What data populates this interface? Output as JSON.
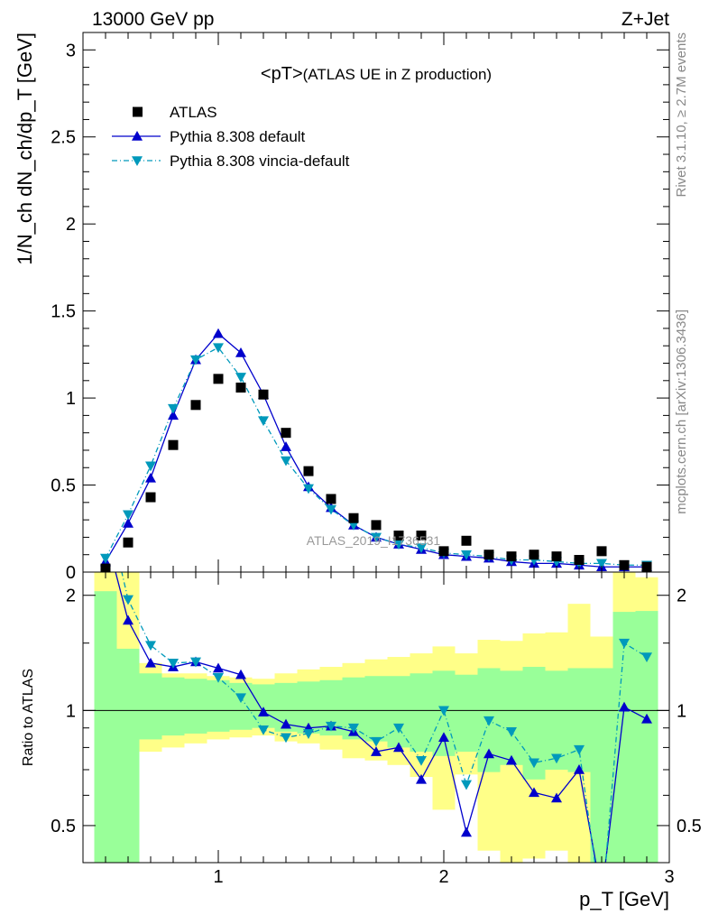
{
  "header": {
    "left": "13000 GeV pp",
    "right": "Z+Jet"
  },
  "side_labels": {
    "rivet": "Rivet 3.1.10, ≥ 2.7M events",
    "mcplots": "mcplots.cern.ch [arXiv:1306.3436]"
  },
  "watermark": "ATLAS_2019_I1736531",
  "main_title": {
    "main": "<pT>",
    "sub": "(ATLAS UE in Z production)"
  },
  "axes": {
    "y_main_label": "1/N_ch dN_ch/dp_T [GeV]",
    "y_ratio_label": "Ratio to ATLAS",
    "x_label": "p_T [GeV]",
    "x_ticks": [
      "1",
      "2",
      "3"
    ],
    "y_main_ticks": [
      "0",
      "0.5",
      "1",
      "1.5",
      "2",
      "2.5",
      "3"
    ],
    "y_ratio_ticks": [
      "0.5",
      "1",
      "2"
    ]
  },
  "legend": [
    {
      "label": "ATLAS",
      "marker": "square",
      "color": "#000000"
    },
    {
      "label": "Pythia 8.308 default",
      "marker": "triangle-up",
      "color": "#0000cc"
    },
    {
      "label": "Pythia 8.308 vincia-default",
      "marker": "triangle-down",
      "color": "#0099bb"
    }
  ],
  "chart_data": {
    "type": "line",
    "x": [
      0.5,
      0.6,
      0.7,
      0.8,
      0.9,
      1.0,
      1.1,
      1.2,
      1.3,
      1.4,
      1.5,
      1.6,
      1.7,
      1.8,
      1.9,
      2.0,
      2.1,
      2.2,
      2.3,
      2.4,
      2.5,
      2.6,
      2.7,
      2.8,
      2.9
    ],
    "xlim": [
      0.4,
      3.0
    ],
    "ylim": [
      0,
      3.1
    ],
    "ratio_ylim": [
      0.4,
      2.3
    ],
    "ratio_scale": "log",
    "series": [
      {
        "name": "ATLAS",
        "color": "#000000",
        "values": [
          0.02,
          0.17,
          0.43,
          0.73,
          0.96,
          1.11,
          1.06,
          1.02,
          0.8,
          0.58,
          0.42,
          0.31,
          0.27,
          0.21,
          0.21,
          0.12,
          0.18,
          0.1,
          0.09,
          0.1,
          0.09,
          0.07,
          0.12,
          0.04,
          0.03
        ]
      },
      {
        "name": "Pythia 8.308 default",
        "color": "#0000cc",
        "values": [
          0.06,
          0.28,
          0.54,
          0.9,
          1.22,
          1.37,
          1.26,
          1.02,
          0.72,
          0.49,
          0.37,
          0.27,
          0.2,
          0.16,
          0.13,
          0.1,
          0.09,
          0.08,
          0.06,
          0.05,
          0.05,
          0.04,
          0.03,
          0.03,
          0.03
        ],
        "ratio": [
          2.9,
          1.72,
          1.33,
          1.3,
          1.34,
          1.29,
          1.24,
          0.99,
          0.92,
          0.9,
          0.91,
          0.88,
          0.78,
          0.8,
          0.66,
          0.85,
          0.48,
          0.77,
          0.74,
          0.61,
          0.59,
          0.7,
          0.33,
          1.02,
          0.95
        ]
      },
      {
        "name": "Pythia 8.308 vincia-default",
        "color": "#0099bb",
        "values": [
          0.08,
          0.33,
          0.61,
          0.94,
          1.22,
          1.29,
          1.12,
          0.87,
          0.64,
          0.48,
          0.36,
          0.27,
          0.2,
          0.16,
          0.14,
          0.11,
          0.1,
          0.09,
          0.07,
          0.07,
          0.06,
          0.05,
          0.05,
          0.04,
          0.04
        ],
        "ratio": [
          3.5,
          1.95,
          1.48,
          1.33,
          1.34,
          1.22,
          1.08,
          0.89,
          0.85,
          0.87,
          0.91,
          0.9,
          0.83,
          0.9,
          0.74,
          1.0,
          0.64,
          0.94,
          0.88,
          0.73,
          0.75,
          0.79,
          0.3,
          1.5,
          1.38
        ]
      }
    ],
    "ratio_bands": {
      "inner_high": [
        2.05,
        1.45,
        1.25,
        1.22,
        1.21,
        1.2,
        1.18,
        1.17,
        1.18,
        1.19,
        1.2,
        1.22,
        1.23,
        1.23,
        1.25,
        1.27,
        1.24,
        1.29,
        1.27,
        1.3,
        1.27,
        1.29,
        1.29,
        1.81,
        1.82
      ],
      "inner_low": [
        0.1,
        0.4,
        0.84,
        0.86,
        0.87,
        0.88,
        0.89,
        0.9,
        0.88,
        0.87,
        0.86,
        0.84,
        0.83,
        0.8,
        0.78,
        0.76,
        0.78,
        0.69,
        0.72,
        0.66,
        0.7,
        0.69,
        0.1,
        0.1,
        0.1
      ],
      "outer_high": [
        2.7,
        2.6,
        1.33,
        1.25,
        1.25,
        1.23,
        1.22,
        1.21,
        1.25,
        1.28,
        1.3,
        1.33,
        1.36,
        1.38,
        1.41,
        1.47,
        1.41,
        1.53,
        1.52,
        1.59,
        1.6,
        1.9,
        1.56,
        2.3,
        2.23
      ],
      "outer_low": [
        0.1,
        0.6,
        0.78,
        0.8,
        0.82,
        0.84,
        0.85,
        0.86,
        0.83,
        0.82,
        0.79,
        0.75,
        0.74,
        0.72,
        0.67,
        0.55,
        0.68,
        0.43,
        0.4,
        0.41,
        0.43,
        0.38,
        0.1,
        0.1,
        0.1
      ]
    }
  }
}
